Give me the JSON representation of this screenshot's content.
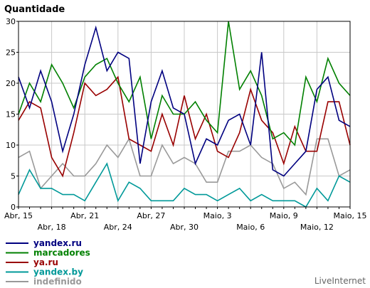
{
  "chart_data": {
    "type": "line",
    "ylabel": "Quantidade",
    "ylim": [
      0,
      30
    ],
    "yticks": [
      0,
      5,
      10,
      15,
      20,
      25,
      30
    ],
    "grid": true,
    "x": [
      "Abr, 15",
      "Abr, 16",
      "Abr, 17",
      "Abr, 18",
      "Abr, 19",
      "Abr, 20",
      "Abr, 21",
      "Abr, 22",
      "Abr, 23",
      "Abr, 24",
      "Abr, 25",
      "Abr, 26",
      "Abr, 27",
      "Abr, 28",
      "Abr, 29",
      "Abr, 30",
      "Maio, 1",
      "Maio, 2",
      "Maio, 3",
      "Maio, 4",
      "Maio, 5",
      "Maio, 6",
      "Maio, 7",
      "Maio, 8",
      "Maio, 9",
      "Maio, 10",
      "Maio, 11",
      "Maio, 12",
      "Maio, 13",
      "Maio, 14",
      "Maio, 15"
    ],
    "xtick_labels_row1": [
      "Abr, 15",
      "Abr, 21",
      "Abr, 27",
      "Maio, 3",
      "Maio, 9",
      "Maio, 15"
    ],
    "xtick_labels_row2": [
      "Abr, 18",
      "Abr, 24",
      "Abr, 30",
      "Maio, 6",
      "Maio, 12"
    ],
    "legend_position": "bottom-left",
    "series": [
      {
        "name": "yandex.ru",
        "color": "#000080",
        "values": [
          21,
          16,
          22,
          17,
          9,
          15,
          23,
          29,
          22,
          25,
          24,
          7,
          17,
          22,
          16,
          15,
          7,
          11,
          10,
          14,
          15,
          10,
          25,
          6,
          5,
          7,
          9,
          19,
          21,
          14,
          13
        ]
      },
      {
        "name": "marcadores",
        "color": "#008000",
        "values": [
          15,
          20,
          17,
          23,
          20,
          16,
          21,
          23,
          24,
          20,
          17,
          21,
          11,
          18,
          15,
          15,
          17,
          14,
          12,
          30,
          19,
          22,
          18,
          11,
          12,
          10,
          21,
          17,
          24,
          20,
          18
        ]
      },
      {
        "name": "ya.ru",
        "color": "#990000",
        "values": [
          14,
          17,
          16,
          8,
          5,
          12,
          20,
          18,
          19,
          21,
          11,
          10,
          9,
          15,
          10,
          18,
          11,
          15,
          9,
          8,
          12,
          19,
          14,
          12,
          7,
          13,
          9,
          9,
          17,
          17,
          10
        ]
      },
      {
        "name": "yandex.by",
        "color": "#009999",
        "values": [
          2,
          6,
          3,
          3,
          2,
          2,
          1,
          4,
          7,
          1,
          4,
          3,
          1,
          1,
          1,
          3,
          2,
          2,
          1,
          2,
          3,
          1,
          2,
          1,
          1,
          1,
          0,
          3,
          1,
          5,
          4
        ]
      },
      {
        "name": "indefinido",
        "color": "#999999",
        "values": [
          8,
          9,
          3,
          5,
          7,
          5,
          5,
          7,
          10,
          8,
          11,
          5,
          5,
          10,
          7,
          8,
          7,
          4,
          4,
          9,
          9,
          10,
          8,
          7,
          3,
          4,
          2,
          11,
          11,
          5,
          6
        ]
      }
    ]
  },
  "brand": "LiveInternet"
}
